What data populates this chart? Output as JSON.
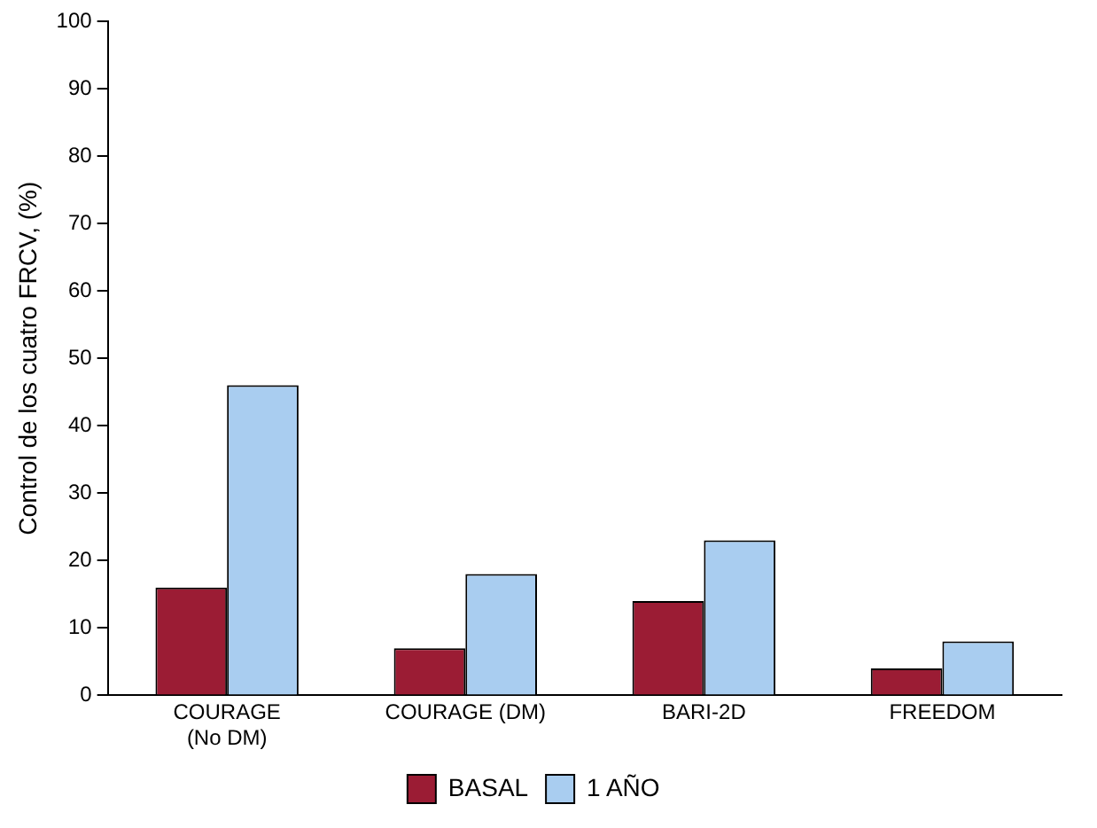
{
  "chart_data": {
    "type": "bar",
    "ylabel": "Control de los cuatro FRCV, (%)",
    "categories": [
      "COURAGE\n(No DM)",
      "COURAGE (DM)",
      "BARI-2D",
      "FREEDOM"
    ],
    "series": [
      {
        "name": "BASAL",
        "color": "#9b1c34",
        "values": [
          16,
          7,
          14,
          4
        ]
      },
      {
        "name": "1 AÑO",
        "color": "#a9cdf0",
        "values": [
          46,
          18,
          23,
          8
        ]
      }
    ],
    "ylim": [
      0,
      100
    ],
    "yticks": [
      0,
      10,
      20,
      30,
      40,
      50,
      60,
      70,
      80,
      90,
      100
    ],
    "grid": false,
    "legend": "bottom"
  }
}
